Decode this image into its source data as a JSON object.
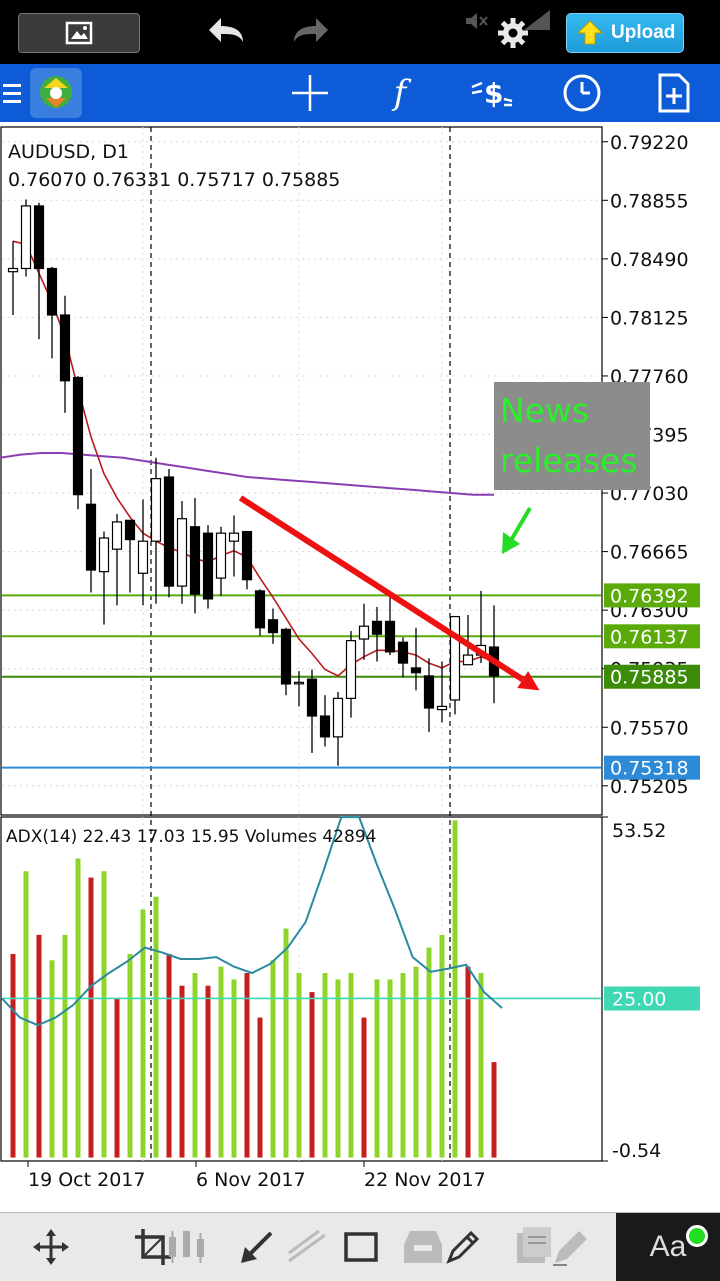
{
  "status_bar": {
    "upload_label": "Upload"
  },
  "chart": {
    "symbol_title": "AUDUSD, D1",
    "ohlc": "0.76070 0.76331 0.75717 0.75885",
    "indicator_label": "ADX(14) 22.43 17.03 15.95 Volumes 42894",
    "annotation": [
      "News",
      "releases"
    ]
  },
  "chart_data": [
    {
      "type": "candlestick",
      "title": "AUDUSD, D1",
      "ylim": [
        0.75023,
        0.79312
      ],
      "y_ticks": [
        "0.79220",
        "0.78855",
        "0.78490",
        "0.78125",
        "0.77760",
        "0.77395",
        "0.77030",
        "0.76665",
        "0.76300",
        "0.75935",
        "0.75570",
        "0.75205"
      ],
      "x_labels": [
        "19 Oct 2017",
        "6 Nov 2017",
        "22 Nov 2017"
      ],
      "price_levels": [
        {
          "label": "0.76392",
          "value": 0.76392,
          "color": "#5aaa0a"
        },
        {
          "label": "0.76137",
          "value": 0.76137,
          "color": "#5aaa0a"
        },
        {
          "label": "0.75885",
          "value": 0.75885,
          "color": "#3c8c0a"
        },
        {
          "label": "0.75318",
          "value": 0.75318,
          "color": "#2c8ad6"
        }
      ],
      "candles": [
        {
          "o": 0.7841,
          "h": 0.786,
          "l": 0.7814,
          "c": 0.7843
        },
        {
          "o": 0.7843,
          "h": 0.7886,
          "l": 0.7838,
          "c": 0.7882
        },
        {
          "o": 0.7882,
          "h": 0.7884,
          "l": 0.7799,
          "c": 0.7843
        },
        {
          "o": 0.7843,
          "h": 0.7844,
          "l": 0.7787,
          "c": 0.7814
        },
        {
          "o": 0.7814,
          "h": 0.7826,
          "l": 0.7753,
          "c": 0.7773
        },
        {
          "o": 0.7775,
          "h": 0.7776,
          "l": 0.7693,
          "c": 0.7702
        },
        {
          "o": 0.7696,
          "h": 0.7718,
          "l": 0.7641,
          "c": 0.7655
        },
        {
          "o": 0.7654,
          "h": 0.7679,
          "l": 0.7621,
          "c": 0.7675
        },
        {
          "o": 0.7668,
          "h": 0.769,
          "l": 0.7633,
          "c": 0.7685
        },
        {
          "o": 0.7686,
          "h": 0.7686,
          "l": 0.7641,
          "c": 0.7674
        },
        {
          "o": 0.7653,
          "h": 0.7699,
          "l": 0.7633,
          "c": 0.7673
        },
        {
          "o": 0.7673,
          "h": 0.7725,
          "l": 0.7634,
          "c": 0.7712
        },
        {
          "o": 0.7713,
          "h": 0.7718,
          "l": 0.7638,
          "c": 0.7645
        },
        {
          "o": 0.7645,
          "h": 0.7698,
          "l": 0.7634,
          "c": 0.7687
        },
        {
          "o": 0.7682,
          "h": 0.77,
          "l": 0.7628,
          "c": 0.764
        },
        {
          "o": 0.7678,
          "h": 0.7683,
          "l": 0.7631,
          "c": 0.7637
        },
        {
          "o": 0.765,
          "h": 0.7682,
          "l": 0.7639,
          "c": 0.7678
        },
        {
          "o": 0.7673,
          "h": 0.7689,
          "l": 0.7651,
          "c": 0.7678
        },
        {
          "o": 0.7679,
          "h": 0.7679,
          "l": 0.7643,
          "c": 0.7649
        },
        {
          "o": 0.7642,
          "h": 0.7643,
          "l": 0.7614,
          "c": 0.7619
        },
        {
          "o": 0.7624,
          "h": 0.7631,
          "l": 0.7609,
          "c": 0.7616
        },
        {
          "o": 0.7618,
          "h": 0.7619,
          "l": 0.7577,
          "c": 0.7584
        },
        {
          "o": 0.7585,
          "h": 0.7592,
          "l": 0.757,
          "c": 0.7585
        },
        {
          "o": 0.7587,
          "h": 0.7593,
          "l": 0.7541,
          "c": 0.7564
        },
        {
          "o": 0.7564,
          "h": 0.7577,
          "l": 0.7545,
          "c": 0.7551
        },
        {
          "o": 0.7551,
          "h": 0.7579,
          "l": 0.7533,
          "c": 0.7575
        },
        {
          "o": 0.7575,
          "h": 0.7617,
          "l": 0.7563,
          "c": 0.7611
        },
        {
          "o": 0.7612,
          "h": 0.7634,
          "l": 0.7599,
          "c": 0.762
        },
        {
          "o": 0.7623,
          "h": 0.7632,
          "l": 0.7598,
          "c": 0.7615
        },
        {
          "o": 0.7623,
          "h": 0.7638,
          "l": 0.7602,
          "c": 0.7604
        },
        {
          "o": 0.761,
          "h": 0.7613,
          "l": 0.7588,
          "c": 0.7597
        },
        {
          "o": 0.7594,
          "h": 0.7619,
          "l": 0.758,
          "c": 0.7591
        },
        {
          "o": 0.7589,
          "h": 0.76,
          "l": 0.7554,
          "c": 0.7569
        },
        {
          "o": 0.7568,
          "h": 0.7598,
          "l": 0.756,
          "c": 0.757
        },
        {
          "o": 0.7574,
          "h": 0.7625,
          "l": 0.7565,
          "c": 0.7626
        },
        {
          "o": 0.7596,
          "h": 0.7627,
          "l": 0.7596,
          "c": 0.7602
        },
        {
          "o": 0.7602,
          "h": 0.7642,
          "l": 0.7597,
          "c": 0.7608
        },
        {
          "o": 0.7607,
          "h": 0.7633,
          "l": 0.7572,
          "c": 0.7589
        }
      ],
      "ma_fast": [
        0.786,
        0.7858,
        0.784,
        0.7822,
        0.78,
        0.7768,
        0.7738,
        0.7715,
        0.77,
        0.7688,
        0.7678,
        0.7673,
        0.7669,
        0.7666,
        0.7662,
        0.766,
        0.7664,
        0.7667,
        0.7663,
        0.765,
        0.7638,
        0.7625,
        0.7612,
        0.7603,
        0.7593,
        0.7589,
        0.7596,
        0.7601,
        0.7605,
        0.7605,
        0.7604,
        0.7602,
        0.7597,
        0.7594,
        0.7598,
        0.7598,
        0.7601,
        0.7598
      ],
      "ma_slow": {
        "x_start": 0,
        "x_end": 37,
        "values": [
          0.7725,
          0.7727,
          0.7728,
          0.7728,
          0.7727,
          0.7726,
          0.7725,
          0.7723,
          0.7721,
          0.7719,
          0.7717,
          0.7715,
          0.7713,
          0.7712,
          0.7711,
          0.771,
          0.7709,
          0.7708,
          0.7707,
          0.7706,
          0.7705,
          0.7704,
          0.7703,
          0.7702,
          0.7702
        ]
      },
      "trendline": {
        "from": {
          "x": 17.5,
          "y": 0.77
        },
        "to": {
          "x": 40.5,
          "y": 0.758
        }
      },
      "annotation": "News releases",
      "vertical_separators": [
        10,
        33
      ]
    },
    {
      "type": "bar",
      "title": "ADX(14) 22.43 17.03 15.95 Volumes 42894",
      "ylim": [
        -0.54,
        53.52
      ],
      "reference_line": 25.0,
      "volumes": [
        {
          "v": 32,
          "up": false
        },
        {
          "v": 45,
          "up": true
        },
        {
          "v": 35,
          "up": false
        },
        {
          "v": 31,
          "up": true
        },
        {
          "v": 35,
          "up": true
        },
        {
          "v": 47,
          "up": true
        },
        {
          "v": 44,
          "up": false
        },
        {
          "v": 45,
          "up": true
        },
        {
          "v": 25,
          "up": false
        },
        {
          "v": 32,
          "up": true
        },
        {
          "v": 39,
          "up": true
        },
        {
          "v": 41,
          "up": true
        },
        {
          "v": 32,
          "up": false
        },
        {
          "v": 27,
          "up": false
        },
        {
          "v": 29,
          "up": true
        },
        {
          "v": 27,
          "up": false
        },
        {
          "v": 30,
          "up": true
        },
        {
          "v": 28,
          "up": true
        },
        {
          "v": 29,
          "up": false
        },
        {
          "v": 22,
          "up": false
        },
        {
          "v": 31,
          "up": true
        },
        {
          "v": 36,
          "up": true
        },
        {
          "v": 29,
          "up": true
        },
        {
          "v": 26,
          "up": false
        },
        {
          "v": 29,
          "up": true
        },
        {
          "v": 28,
          "up": true
        },
        {
          "v": 29,
          "up": true
        },
        {
          "v": 22,
          "up": false
        },
        {
          "v": 28,
          "up": true
        },
        {
          "v": 28,
          "up": true
        },
        {
          "v": 29,
          "up": true
        },
        {
          "v": 30,
          "up": true
        },
        {
          "v": 33,
          "up": true
        },
        {
          "v": 35,
          "up": true
        },
        {
          "v": 53,
          "up": true
        },
        {
          "v": 30,
          "up": false
        },
        {
          "v": 29,
          "up": true
        },
        {
          "v": 15,
          "up": false
        }
      ],
      "adx_line": [
        25,
        22.0,
        20.8,
        22.0,
        24.0,
        27.0,
        29.0,
        30.8,
        33.0,
        32.2,
        31.2,
        31.2,
        31.5,
        30.0,
        29.0,
        30.4,
        33.0,
        37.0,
        45.0,
        53.5,
        53.5,
        46.0,
        39.0,
        31.5,
        29.2,
        29.7,
        30.3,
        26.0,
        23.5
      ]
    }
  ]
}
